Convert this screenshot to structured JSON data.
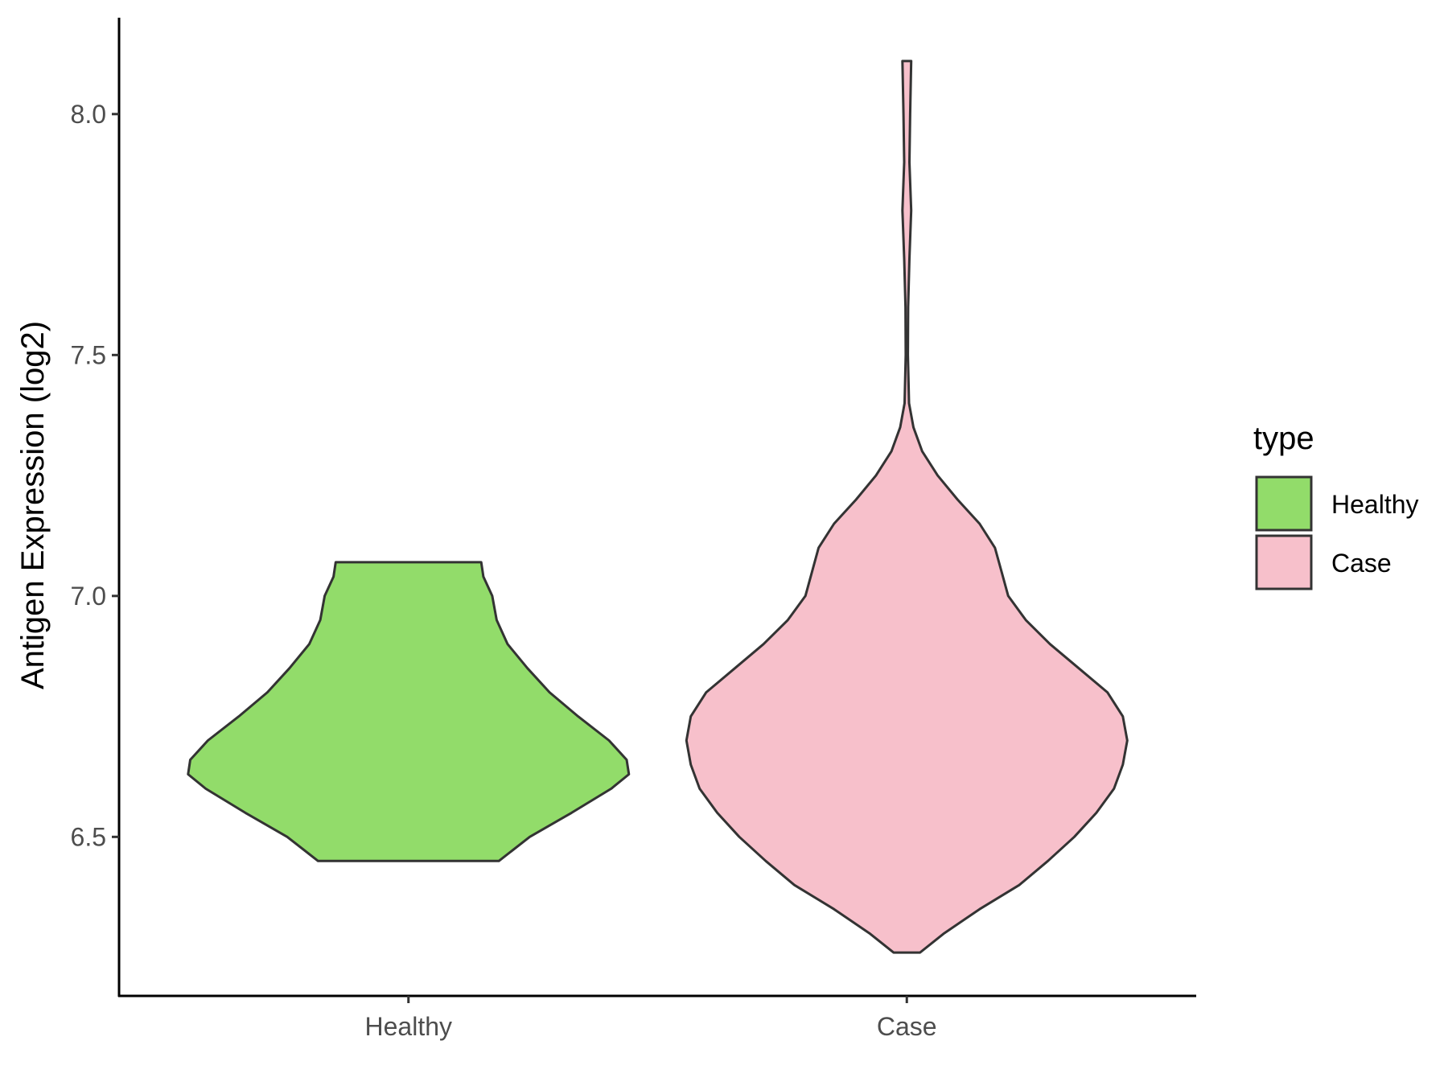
{
  "chart_data": {
    "type": "violin",
    "ylabel": "Antigen Expression (log2)",
    "xlabel": "",
    "categories": [
      "Healthy",
      "Case"
    ],
    "ylim": [
      6.17,
      8.2
    ],
    "yticks": [
      6.5,
      7.0,
      7.5,
      8.0
    ],
    "ytick_labels": [
      "6.5",
      "7.0",
      "7.5",
      "8.0"
    ],
    "legend": {
      "title": "type",
      "placement": "right",
      "entries": [
        "Healthy",
        "Case"
      ]
    },
    "series": [
      {
        "name": "Healthy",
        "color": "#92DC6A",
        "min": 6.45,
        "max": 7.07,
        "density_profile": [
          [
            6.45,
            0.41
          ],
          [
            6.5,
            0.55
          ],
          [
            6.55,
            0.74
          ],
          [
            6.6,
            0.92
          ],
          [
            6.63,
            1.0
          ],
          [
            6.66,
            0.99
          ],
          [
            6.7,
            0.91
          ],
          [
            6.75,
            0.77
          ],
          [
            6.8,
            0.64
          ],
          [
            6.85,
            0.54
          ],
          [
            6.9,
            0.45
          ],
          [
            6.95,
            0.4
          ],
          [
            7.0,
            0.38
          ],
          [
            7.04,
            0.34
          ],
          [
            7.07,
            0.33
          ]
        ]
      },
      {
        "name": "Case",
        "color": "#F7C0CB",
        "min": 6.26,
        "max": 8.11,
        "density_profile": [
          [
            6.26,
            0.06
          ],
          [
            6.3,
            0.17
          ],
          [
            6.35,
            0.33
          ],
          [
            6.4,
            0.51
          ],
          [
            6.45,
            0.64
          ],
          [
            6.5,
            0.76
          ],
          [
            6.55,
            0.86
          ],
          [
            6.6,
            0.94
          ],
          [
            6.65,
            0.98
          ],
          [
            6.7,
            1.0
          ],
          [
            6.75,
            0.98
          ],
          [
            6.8,
            0.91
          ],
          [
            6.85,
            0.78
          ],
          [
            6.9,
            0.65
          ],
          [
            6.95,
            0.54
          ],
          [
            7.0,
            0.46
          ],
          [
            7.05,
            0.43
          ],
          [
            7.1,
            0.4
          ],
          [
            7.15,
            0.33
          ],
          [
            7.2,
            0.23
          ],
          [
            7.25,
            0.14
          ],
          [
            7.3,
            0.07
          ],
          [
            7.35,
            0.03
          ],
          [
            7.4,
            0.01
          ],
          [
            7.5,
            0.005
          ],
          [
            7.6,
            0.006
          ],
          [
            7.7,
            0.012
          ],
          [
            7.8,
            0.02
          ],
          [
            7.9,
            0.012
          ],
          [
            8.0,
            0.015
          ],
          [
            8.11,
            0.02
          ]
        ]
      }
    ]
  }
}
